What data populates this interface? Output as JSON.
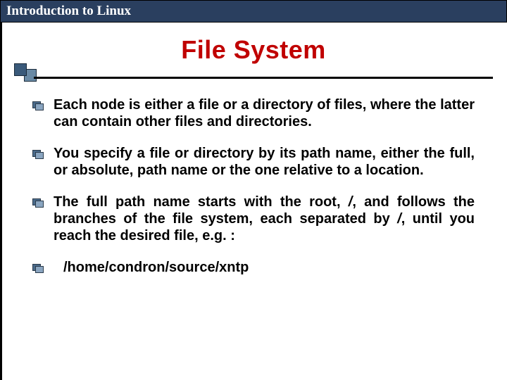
{
  "header": {
    "title": "Introduction to Linux"
  },
  "slide": {
    "title": "File System",
    "title_color": "#c00000",
    "bullets": [
      {
        "text": "Each node is either a file or a directory of files, where the latter can contain other files and directories."
      },
      {
        "text": "You specify a file or directory by its path name, either the full, or absolute, path name or the one relative to a location."
      },
      {
        "text_parts": [
          "The full path name starts with the root, ",
          "/",
          ", and follows the branches of the file system, each separated by ",
          "/",
          ", until you reach the desired file, e.g. :"
        ]
      },
      {
        "text": "/home/condron/source/xntp",
        "example": true
      }
    ]
  },
  "colors": {
    "header_bg": "#2a3f5f",
    "accent_dark": "#3a5a7a",
    "accent_light": "#6a8aa5"
  }
}
